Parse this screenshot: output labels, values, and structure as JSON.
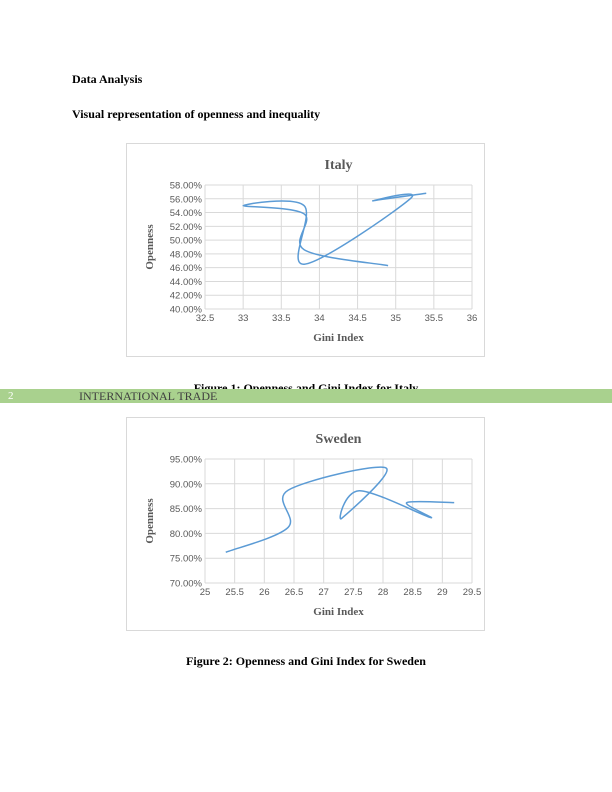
{
  "headings": {
    "section": "Data Analysis",
    "subsection": "Visual representation of openness and inequality"
  },
  "band": {
    "page_number": "2",
    "running_header": "INTERNATIONAL TRADE",
    "color": "#a9d18e"
  },
  "captions": {
    "figure1": "Figure 1: Openness and Gini Index for Italy",
    "figure2": "Figure 2: Openness and Gini Index for Sweden"
  },
  "chart_data": [
    {
      "type": "scatter",
      "title": "Italy",
      "xlabel": "Gini Index",
      "ylabel": "Openness",
      "xlim": [
        32.5,
        36
      ],
      "ylim": [
        0.4,
        0.58
      ],
      "x_ticks": [
        "32.5",
        "33",
        "33.5",
        "34",
        "34.5",
        "35",
        "35.5",
        "36"
      ],
      "y_ticks": [
        "40.00%",
        "42.00%",
        "44.00%",
        "46.00%",
        "48.00%",
        "50.00%",
        "52.00%",
        "54.00%",
        "56.00%",
        "58.00%"
      ],
      "grid": true,
      "smooth_lines": true,
      "line_color": "#5b9bd5",
      "points": [
        {
          "x": 34.9,
          "y": 0.463
        },
        {
          "x": 33.8,
          "y": 0.486
        },
        {
          "x": 33.8,
          "y": 0.538
        },
        {
          "x": 33.0,
          "y": 0.55
        },
        {
          "x": 33.8,
          "y": 0.55
        },
        {
          "x": 33.8,
          "y": 0.465
        },
        {
          "x": 35.2,
          "y": 0.561
        },
        {
          "x": 34.7,
          "y": 0.557
        },
        {
          "x": 35.4,
          "y": 0.568
        }
      ]
    },
    {
      "type": "scatter",
      "title": "Sweden",
      "xlabel": "Gini Index",
      "ylabel": "Openness",
      "xlim": [
        25,
        29.5
      ],
      "ylim": [
        0.7,
        0.95
      ],
      "x_ticks": [
        "25",
        "25.5",
        "26",
        "26.5",
        "27",
        "27.5",
        "28",
        "28.5",
        "29",
        "29.5"
      ],
      "y_ticks": [
        "70.00%",
        "75.00%",
        "80.00%",
        "85.00%",
        "90.00%",
        "95.00%"
      ],
      "grid": true,
      "smooth_lines": true,
      "line_color": "#5b9bd5",
      "points": [
        {
          "x": 25.35,
          "y": 0.762
        },
        {
          "x": 26.4,
          "y": 0.812
        },
        {
          "x": 26.4,
          "y": 0.887
        },
        {
          "x": 28.05,
          "y": 0.932
        },
        {
          "x": 27.3,
          "y": 0.83
        },
        {
          "x": 27.6,
          "y": 0.886
        },
        {
          "x": 28.8,
          "y": 0.832
        },
        {
          "x": 28.4,
          "y": 0.862
        },
        {
          "x": 29.2,
          "y": 0.862
        }
      ]
    }
  ]
}
